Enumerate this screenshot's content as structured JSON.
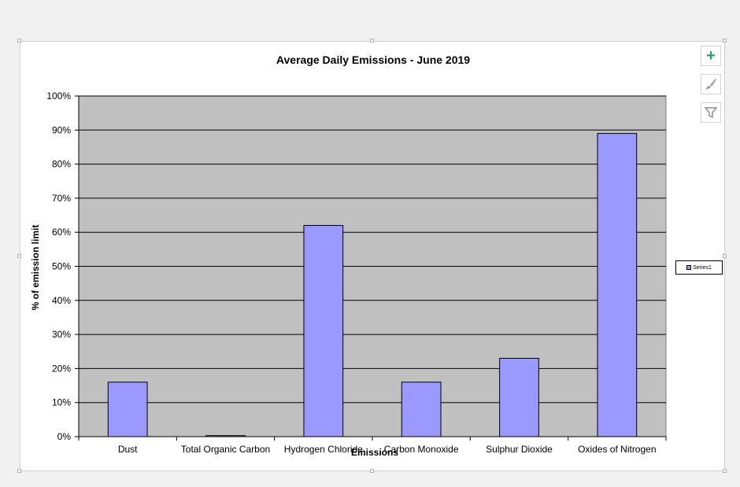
{
  "colors": {
    "plot_background": "#c0c0c0",
    "bar_fill": "#9999ff",
    "bar_stroke": "#000000",
    "gridline": "#000000",
    "add_icon": "#21a366"
  },
  "toolbar": {
    "add_element_icon": "plus-icon",
    "style_icon": "brush-icon",
    "filter_icon": "filter-icon"
  },
  "chart_data": {
    "type": "bar",
    "title": "Average Daily Emissions - June 2019",
    "xlabel": "Emissions",
    "ylabel": "% of emission limit",
    "categories": [
      "Dust",
      "Total Organic Carbon",
      "Hydrogen Chloride",
      "Carbon Monoxide",
      "Sulphur Dioxide",
      "Oxides of Nitrogen"
    ],
    "series": [
      {
        "name": "Series1",
        "values": [
          0.16,
          0.003,
          0.62,
          0.16,
          0.23,
          0.89
        ]
      }
    ],
    "ylim": [
      0,
      1
    ],
    "yticks": [
      "0%",
      "10%",
      "20%",
      "30%",
      "40%",
      "50%",
      "60%",
      "70%",
      "80%",
      "90%",
      "100%"
    ],
    "grid": true,
    "legend_position": "right"
  }
}
